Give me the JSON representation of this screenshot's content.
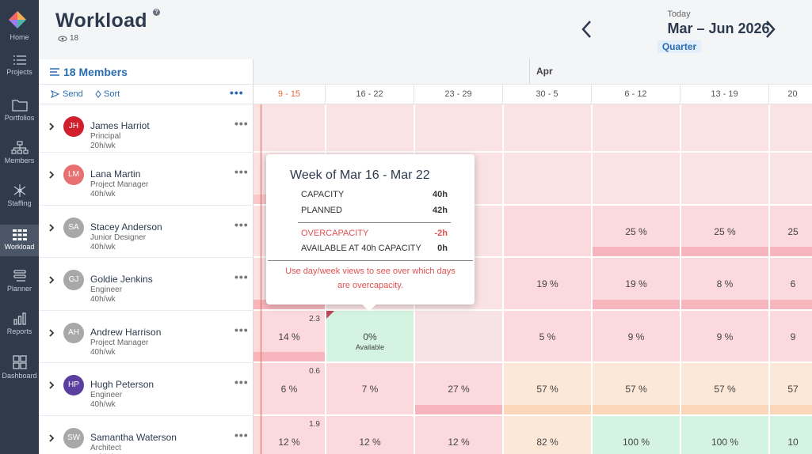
{
  "sidebar": {
    "items": [
      {
        "label": "Home",
        "icon": "logo-icon"
      },
      {
        "label": "Projects",
        "icon": "list-icon"
      },
      {
        "label": "Portfolios",
        "icon": "folder-icon"
      },
      {
        "label": "Members",
        "icon": "org-chart-icon"
      },
      {
        "label": "Staffing",
        "icon": "network-icon"
      },
      {
        "label": "Workload",
        "icon": "grid-icon",
        "active": true
      },
      {
        "label": "Planner",
        "icon": "planner-icon"
      },
      {
        "label": "Reports",
        "icon": "bar-chart-icon"
      },
      {
        "label": "Dashboard",
        "icon": "dashboard-icon"
      }
    ]
  },
  "header": {
    "title": "Workload",
    "help": "?",
    "viewer_count": "18",
    "today_label": "Today",
    "date_range": "Mar – Jun 2026",
    "view_mode": "Quarter"
  },
  "members_panel": {
    "title": "18 Members",
    "send_label": "Send",
    "sort_label": "Sort",
    "more_label": "•••"
  },
  "timeline": {
    "month_label": "Apr",
    "weeks": [
      "9 - 15",
      "16 - 22",
      "23 - 29",
      "30 - 5",
      "6 - 12",
      "13 - 19",
      "20"
    ]
  },
  "members": [
    {
      "initials": "JH",
      "name": "James Harriot",
      "role": "Principal",
      "hours": "20h/wk",
      "avatar_color": "#d0202e",
      "cells": [
        {
          "text": ""
        },
        {
          "text": ""
        },
        {
          "text": ""
        },
        {
          "text": ""
        },
        {
          "text": ""
        },
        {
          "text": ""
        },
        {
          "text": ""
        }
      ]
    },
    {
      "initials": "LM",
      "name": "Lana Martin",
      "role": "Project Manager",
      "hours": "40h/wk",
      "avatar_color": "#e87070",
      "cells": [
        {
          "text": ""
        },
        {
          "text": ""
        },
        {
          "text": ""
        },
        {
          "text": ""
        },
        {
          "text": ""
        },
        {
          "text": ""
        },
        {
          "text": ""
        }
      ]
    },
    {
      "initials": "SA",
      "name": "Stacey Anderson",
      "role": "Junior Designer",
      "hours": "40h/wk",
      "avatar_color": "#a8a8a8",
      "cells": [
        {
          "text": ""
        },
        {
          "text": ""
        },
        {
          "text": ""
        },
        {
          "text": ""
        },
        {
          "text": "25 %"
        },
        {
          "text": "25 %"
        },
        {
          "text": "25"
        }
      ]
    },
    {
      "initials": "GJ",
      "name": "Goldie Jenkins",
      "role": "Engineer",
      "hours": "40h/wk",
      "avatar_color": "#a8a8a8",
      "cells": [
        {
          "text": ""
        },
        {
          "text": ""
        },
        {
          "text": ""
        },
        {
          "text": "19 %"
        },
        {
          "text": "19 %"
        },
        {
          "text": "8 %"
        },
        {
          "text": "6"
        }
      ]
    },
    {
      "initials": "AH",
      "name": "Andrew Harrison",
      "role": "Project Manager",
      "hours": "40h/wk",
      "avatar_color": "#a8a8a8",
      "cells": [
        {
          "text": "14 %",
          "top": "2.3"
        },
        {
          "text": "0%",
          "sub": "Available"
        },
        {
          "text": ""
        },
        {
          "text": "5 %"
        },
        {
          "text": "9 %"
        },
        {
          "text": "9 %"
        },
        {
          "text": "9"
        }
      ]
    },
    {
      "initials": "HP",
      "name": "Hugh Peterson",
      "role": "Engineer",
      "hours": "40h/wk",
      "avatar_color": "#5b3fa0",
      "cells": [
        {
          "text": "6 %",
          "top": "0.6"
        },
        {
          "text": "7 %"
        },
        {
          "text": "27 %"
        },
        {
          "text": "57 %"
        },
        {
          "text": "57 %"
        },
        {
          "text": "57 %"
        },
        {
          "text": "57"
        }
      ]
    },
    {
      "initials": "SW",
      "name": "Samantha Waterson",
      "role": "Architect",
      "hours": "40h/wk",
      "avatar_color": "#a8a8a8",
      "cells": [
        {
          "text": "12 %",
          "top": "1.9"
        },
        {
          "text": "12 %"
        },
        {
          "text": "12 %"
        },
        {
          "text": "82 %"
        },
        {
          "text": "100 %"
        },
        {
          "text": "100 %"
        },
        {
          "text": "10"
        }
      ]
    }
  ],
  "tooltip": {
    "title": "Week of Mar 16 - Mar 22",
    "capacity_label": "CAPACITY",
    "capacity_value": "40h",
    "planned_label": "PLANNED",
    "planned_value": "42h",
    "over_label": "OVERCAPACITY",
    "over_value": "-2h",
    "available_label": "AVAILABLE AT 40h CAPACITY",
    "available_value": "0h",
    "note": "Use day/week views to see over which days are overcapacity."
  },
  "colors": {
    "accent": "#2b6cb0",
    "today": "#e86a3a",
    "over": "#e05252",
    "pink_light": "#fbe3e5",
    "pink": "#fcd9dd",
    "peach": "#fde8d8",
    "green": "#d4f3e1"
  }
}
